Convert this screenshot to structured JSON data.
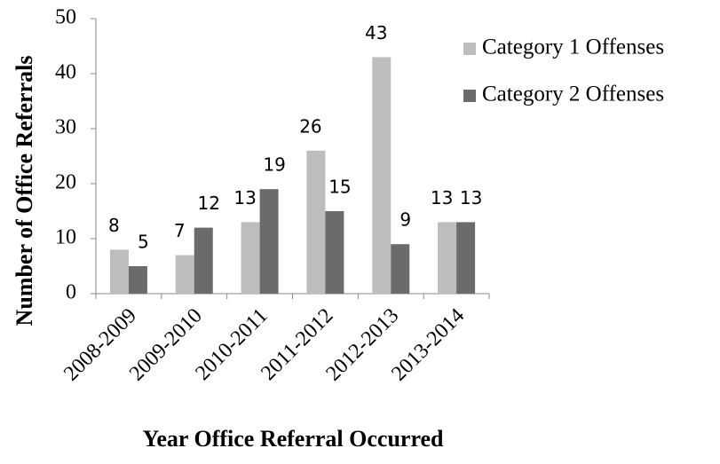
{
  "chart_data": {
    "type": "bar",
    "y_label": "Number of Office Referrals",
    "x_label": "Year Office Referral Occurred",
    "categories": [
      "2008-2009",
      "2009-2010",
      "2010-2011",
      "2011-2012",
      "2012-2013",
      "2013-2014"
    ],
    "series": [
      {
        "name": "Category 1 Offenses",
        "color": "#bdbdbd",
        "values": [
          8,
          7,
          13,
          26,
          43,
          13
        ]
      },
      {
        "name": "Category 2 Offenses",
        "color": "#6b6b6b",
        "values": [
          5,
          12,
          19,
          15,
          9,
          13
        ]
      }
    ],
    "ylim": [
      0,
      50
    ],
    "yticks": [
      0,
      10,
      20,
      30,
      40,
      50
    ],
    "legend": "right"
  }
}
